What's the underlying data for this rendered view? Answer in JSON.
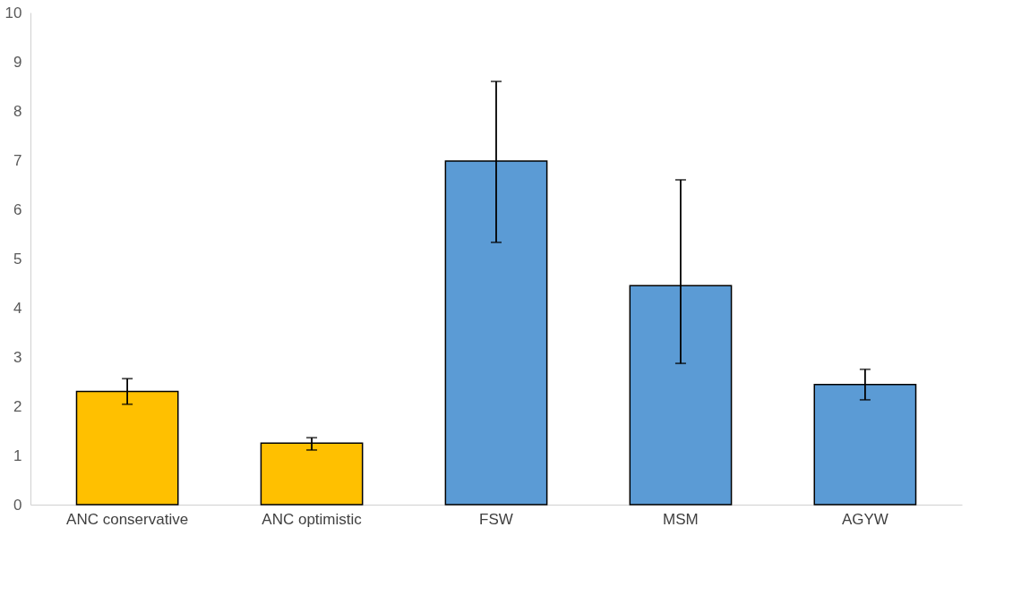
{
  "chart_data": {
    "type": "bar",
    "categories": [
      "ANC conservative",
      "ANC optimistic",
      "FSW",
      "MSM",
      "AGYW"
    ],
    "values": [
      2.3,
      1.25,
      6.98,
      4.45,
      2.44
    ],
    "colors": [
      "#ffc000",
      "#ffc000",
      "#5b9bd5",
      "#5b9bd5",
      "#5b9bd5"
    ],
    "errors": [
      [
        2.04,
        2.56
      ],
      [
        1.11,
        1.36
      ],
      [
        5.33,
        8.6
      ],
      [
        2.87,
        6.6
      ],
      [
        2.13,
        2.75
      ]
    ],
    "ylim": [
      0,
      10
    ],
    "yticks": [
      0,
      1,
      2,
      3,
      4,
      5,
      6,
      7,
      8,
      9,
      10
    ],
    "grid": false
  }
}
